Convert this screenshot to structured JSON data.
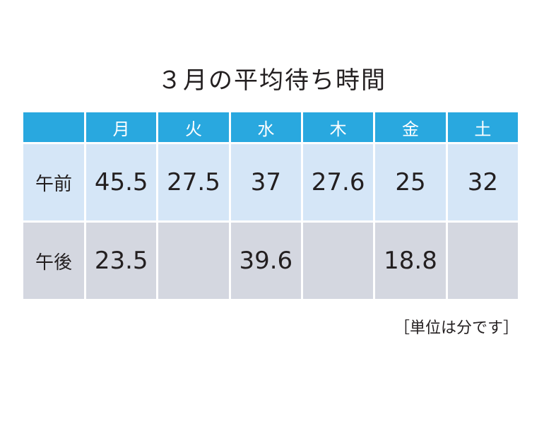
{
  "chart_data": {
    "type": "table",
    "title": "３月の平均待ち時間",
    "columns": [
      "月",
      "火",
      "水",
      "木",
      "金",
      "土"
    ],
    "rows": [
      {
        "label": "午前",
        "values": [
          "45.5",
          "27.5",
          "37",
          "27.6",
          "25",
          "32"
        ]
      },
      {
        "label": "午後",
        "values": [
          "23.5",
          "",
          "39.6",
          "",
          "18.8",
          ""
        ]
      }
    ],
    "note": "［単位は分です］"
  },
  "colors": {
    "header": "#29a8df",
    "am_row": "#d5e6f7",
    "pm_row": "#d4d7e0"
  }
}
